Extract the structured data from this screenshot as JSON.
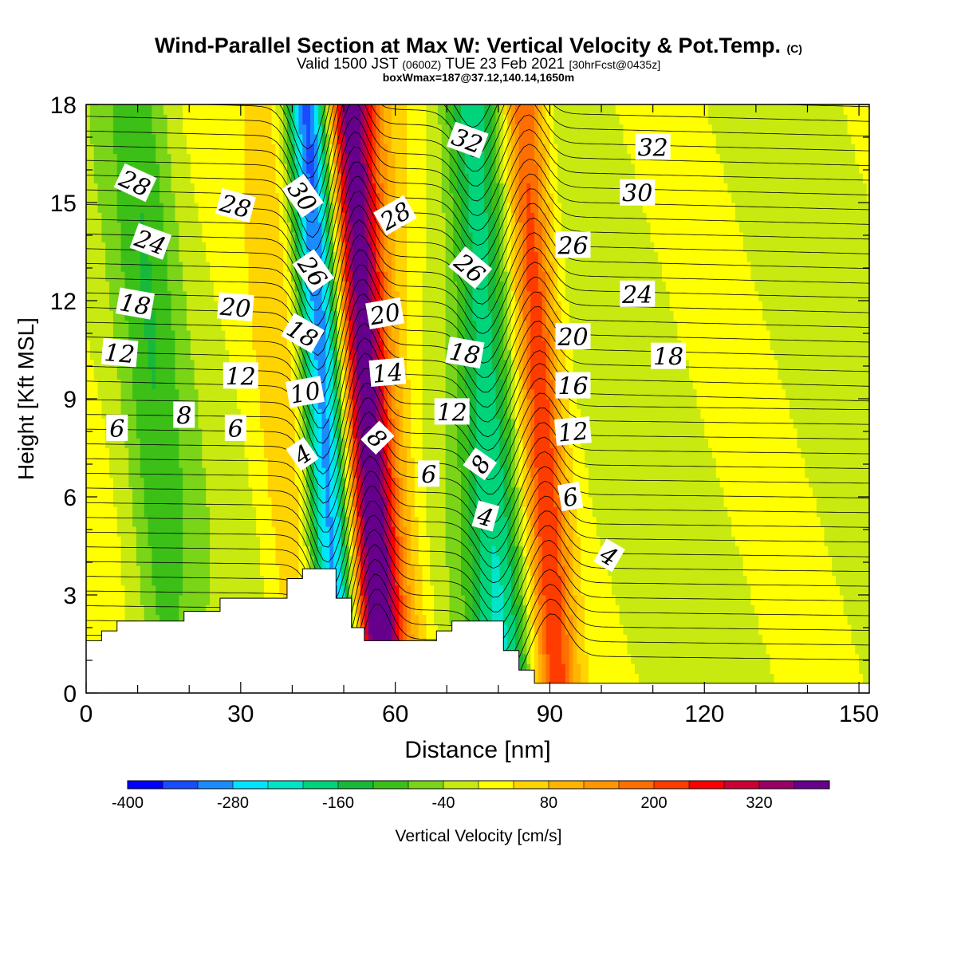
{
  "chart_data": {
    "type": "heatmap",
    "title": "Wind-Parallel Section at Max W: Vertical Velocity & Pot.Temp.",
    "title_mark": "(C)",
    "subtitle_main": "Valid 1500 JST",
    "subtitle_z": "(0600Z)",
    "subtitle_date": "TUE 23 Feb 2021",
    "subtitle_fcst": "[30hrFcst@0435z]",
    "subtitle2": "boxWmax=187@37.12,140.14,1650m",
    "xlabel": "Distance [nm]",
    "ylabel": "Height [Kft MSL]",
    "xlim": [
      0,
      152
    ],
    "ylim": [
      0,
      18
    ],
    "xticks": [
      "0",
      "30",
      "60",
      "90",
      "120",
      "150"
    ],
    "yticks": [
      "0",
      "3",
      "6",
      "9",
      "12",
      "15",
      "18"
    ],
    "colorbar": {
      "label": "Vertical Velocity [cm/s]",
      "tick_labels": [
        "-400",
        "-280",
        "-160",
        "-40",
        "80",
        "200",
        "320"
      ],
      "tick_values": [
        -400,
        -280,
        -160,
        -40,
        80,
        200,
        320
      ],
      "range": [
        -400,
        400
      ],
      "colors": [
        "#0000ff",
        "#1a4cff",
        "#1a8cff",
        "#00e5ff",
        "#00e5c8",
        "#00d47a",
        "#18b83a",
        "#3cc018",
        "#7ad418",
        "#c8ea10",
        "#ffff00",
        "#ffd400",
        "#ffb400",
        "#ff9600",
        "#ff6e00",
        "#ff3c00",
        "#ff0000",
        "#cc0033",
        "#990066",
        "#66008c"
      ]
    },
    "vertical_velocity_features": [
      {
        "x": 46,
        "w": -330
      },
      {
        "x": 54,
        "w": 350
      },
      {
        "x": 58,
        "w": 130
      },
      {
        "x": 78,
        "w": -190
      },
      {
        "x": 88,
        "w": 230
      },
      {
        "x": 13,
        "w": -90
      },
      {
        "x": 39,
        "w": 70
      }
    ],
    "terrain_kft": [
      [
        0,
        1.6
      ],
      [
        3,
        1.9
      ],
      [
        6,
        2.2
      ],
      [
        19,
        2.5
      ],
      [
        26,
        2.9
      ],
      [
        39,
        3.5
      ],
      [
        42,
        3.8
      ],
      [
        48.5,
        2.9
      ],
      [
        51.5,
        2.0
      ],
      [
        54,
        1.6
      ],
      [
        68,
        1.9
      ],
      [
        71,
        2.2
      ],
      [
        81,
        1.3
      ],
      [
        84,
        0.7
      ],
      [
        87,
        0.3
      ],
      [
        152,
        0.3
      ]
    ],
    "potential_temperature_labels": [
      {
        "text": "28",
        "x": 9.5,
        "y": 15.6,
        "rot": 25
      },
      {
        "text": "24",
        "x": 12.5,
        "y": 13.8,
        "rot": 20
      },
      {
        "text": "18",
        "x": 9.5,
        "y": 11.9,
        "rot": 10
      },
      {
        "text": "12",
        "x": 6.5,
        "y": 10.4,
        "rot": 5
      },
      {
        "text": "6",
        "x": 6.0,
        "y": 8.1,
        "rot": 0
      },
      {
        "text": "8",
        "x": 19.0,
        "y": 8.5,
        "rot": 0
      },
      {
        "text": "28",
        "x": 29.0,
        "y": 14.9,
        "rot": 15
      },
      {
        "text": "20",
        "x": 29.0,
        "y": 11.8,
        "rot": 5
      },
      {
        "text": "12",
        "x": 30.0,
        "y": 9.7,
        "rot": 0
      },
      {
        "text": "6",
        "x": 29.0,
        "y": 8.1,
        "rot": 0
      },
      {
        "text": "30",
        "x": 42.0,
        "y": 15.2,
        "rot": 55
      },
      {
        "text": "26",
        "x": 44.0,
        "y": 12.9,
        "rot": 55
      },
      {
        "text": "18",
        "x": 42.0,
        "y": 11.0,
        "rot": 30
      },
      {
        "text": "10",
        "x": 42.5,
        "y": 9.2,
        "rot": -10
      },
      {
        "text": "4",
        "x": 42.0,
        "y": 7.3,
        "rot": -35
      },
      {
        "text": "28",
        "x": 60.0,
        "y": 14.6,
        "rot": -30
      },
      {
        "text": "20",
        "x": 58.0,
        "y": 11.6,
        "rot": -10
      },
      {
        "text": "14",
        "x": 58.5,
        "y": 9.8,
        "rot": -5
      },
      {
        "text": "8",
        "x": 56.5,
        "y": 7.8,
        "rot": 45
      },
      {
        "text": "32",
        "x": 74.0,
        "y": 16.9,
        "rot": 20
      },
      {
        "text": "26",
        "x": 74.5,
        "y": 13.0,
        "rot": 40
      },
      {
        "text": "18",
        "x": 73.5,
        "y": 10.4,
        "rot": 10
      },
      {
        "text": "12",
        "x": 71.0,
        "y": 8.6,
        "rot": 0
      },
      {
        "text": "6",
        "x": 66.5,
        "y": 6.7,
        "rot": 0
      },
      {
        "text": "8",
        "x": 76.5,
        "y": 7.0,
        "rot": -55
      },
      {
        "text": "4",
        "x": 77.5,
        "y": 5.4,
        "rot": 15
      },
      {
        "text": "32",
        "x": 110.0,
        "y": 16.7,
        "rot": 0
      },
      {
        "text": "30",
        "x": 107.0,
        "y": 15.3,
        "rot": 0
      },
      {
        "text": "26",
        "x": 94.5,
        "y": 13.7,
        "rot": 0
      },
      {
        "text": "24",
        "x": 107.0,
        "y": 12.2,
        "rot": 0
      },
      {
        "text": "20",
        "x": 94.5,
        "y": 10.9,
        "rot": 0
      },
      {
        "text": "18",
        "x": 113.0,
        "y": 10.3,
        "rot": 0
      },
      {
        "text": "16",
        "x": 94.5,
        "y": 9.4,
        "rot": 0
      },
      {
        "text": "12",
        "x": 94.5,
        "y": 8.0,
        "rot": -5
      },
      {
        "text": "6",
        "x": 94.0,
        "y": 6.0,
        "rot": -10
      },
      {
        "text": "4",
        "x": 101.5,
        "y": 4.2,
        "rot": 30
      }
    ]
  }
}
